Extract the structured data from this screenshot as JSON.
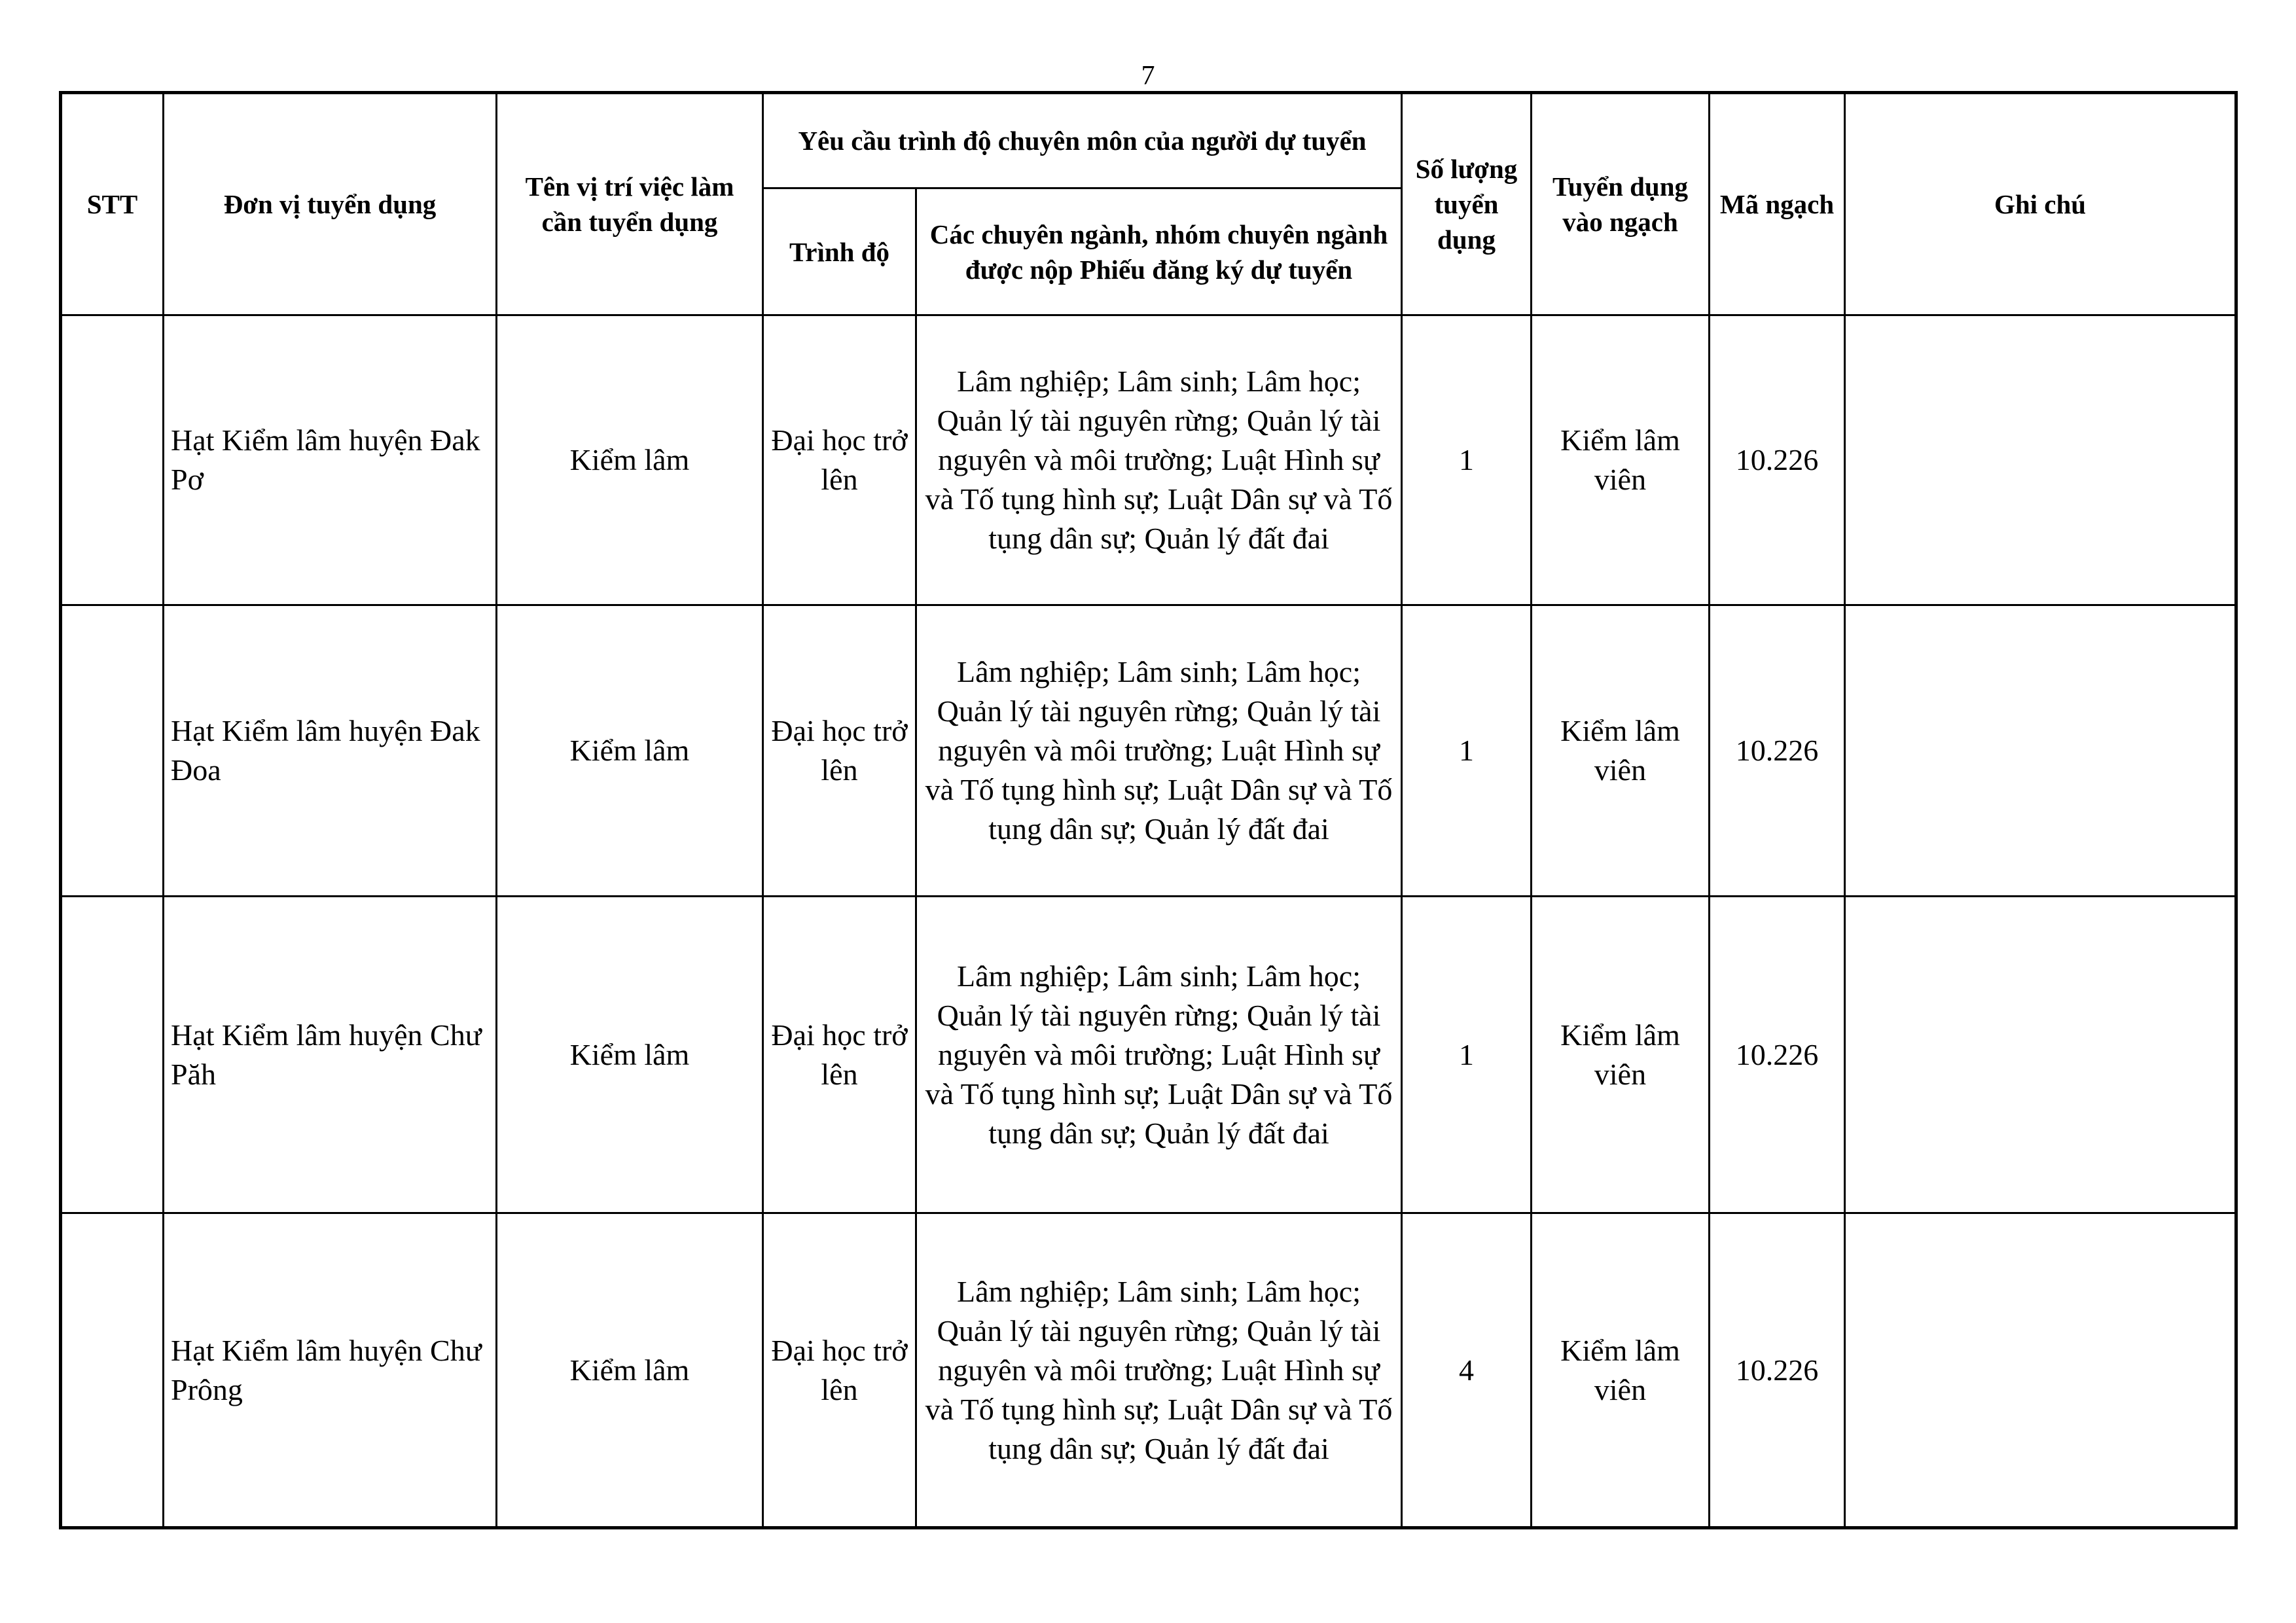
{
  "page_number": "7",
  "headers": {
    "stt": "STT",
    "unit": "Đơn vị tuyển dụng",
    "position": "Tên vị trí việc làm cần tuyển dụng",
    "requirements": "Yêu cầu trình độ chuyên môn của người dự tuyển",
    "level": "Trình độ",
    "majors": "Các chuyên ngành, nhóm chuyên ngành được nộp Phiếu đăng ký dự tuyển",
    "quantity": "Số lượng tuyển dụng",
    "rank": "Tuyển dụng vào ngạch",
    "code": "Mã ngạch",
    "note": "Ghi chú"
  },
  "rows": [
    {
      "stt": "",
      "unit": "Hạt Kiểm lâm huyện Đak Pơ",
      "position": "Kiểm lâm",
      "level": "Đại học trở lên",
      "majors": "Lâm nghiệp; Lâm sinh; Lâm học; Quản lý tài nguyên rừng; Quản lý tài nguyên và môi trường; Luật Hình sự và Tố tụng hình sự; Luật Dân sự và Tố tụng dân sự; Quản lý đất đai",
      "quantity": "1",
      "rank": "Kiểm lâm viên",
      "code": "10.226",
      "note": ""
    },
    {
      "stt": "",
      "unit": "Hạt Kiểm lâm huyện Đak Đoa",
      "position": "Kiểm lâm",
      "level": "Đại học trở lên",
      "majors": "Lâm nghiệp; Lâm sinh; Lâm học; Quản lý tài nguyên rừng; Quản lý tài nguyên và môi trường; Luật Hình sự và Tố tụng hình sự; Luật Dân sự và Tố tụng dân sự; Quản lý đất đai",
      "quantity": "1",
      "rank": "Kiểm lâm viên",
      "code": "10.226",
      "note": ""
    },
    {
      "stt": "",
      "unit": "Hạt Kiểm lâm huyện Chư Păh",
      "position": "Kiểm lâm",
      "level": "Đại học trở lên",
      "majors": "Lâm nghiệp; Lâm sinh; Lâm học; Quản lý tài nguyên rừng; Quản lý tài nguyên và môi trường; Luật Hình sự và Tố tụng hình sự; Luật Dân sự và Tố tụng dân sự; Quản lý đất đai",
      "quantity": "1",
      "rank": "Kiểm lâm viên",
      "code": "10.226",
      "note": ""
    },
    {
      "stt": "",
      "unit": "Hạt Kiểm lâm huyện Chư Prông",
      "position": "Kiểm lâm",
      "level": "Đại học trở lên",
      "majors": "Lâm nghiệp; Lâm sinh; Lâm học; Quản lý tài nguyên rừng; Quản lý tài nguyên và môi trường; Luật Hình sự và Tố tụng hình sự; Luật Dân sự và Tố tụng dân sự; Quản lý đất đai",
      "quantity": "4",
      "rank": "Kiểm lâm viên",
      "code": "10.226",
      "note": ""
    }
  ]
}
